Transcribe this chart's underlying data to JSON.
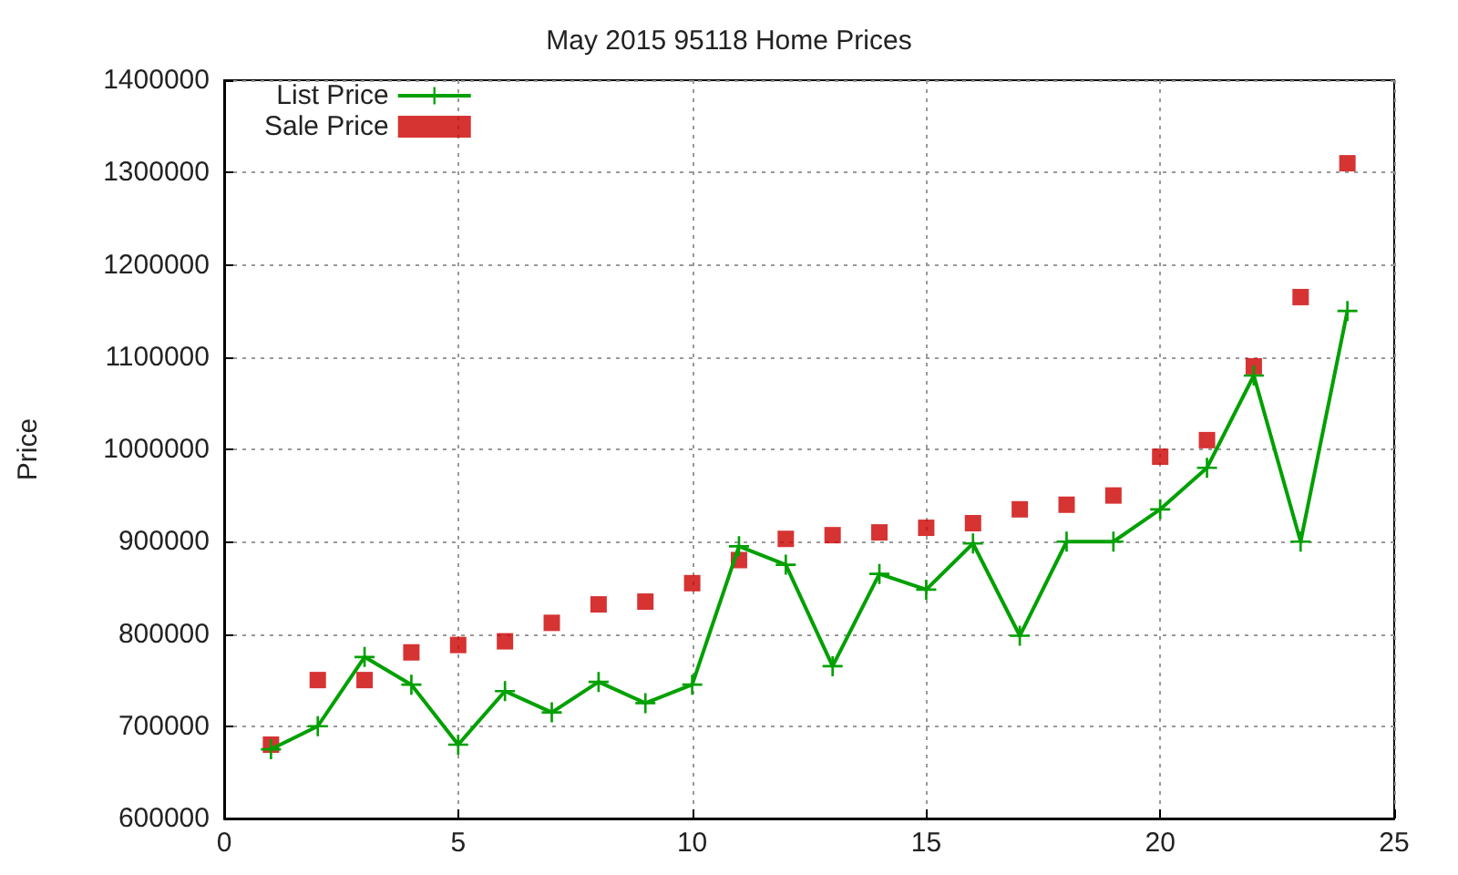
{
  "chart_data": {
    "type": "line",
    "title": "May 2015 95118 Home Prices",
    "ylabel": "Price",
    "x": [
      1,
      2,
      3,
      4,
      5,
      6,
      7,
      8,
      9,
      10,
      11,
      12,
      13,
      14,
      15,
      16,
      17,
      18,
      19,
      20,
      21,
      22,
      23,
      24
    ],
    "series": [
      {
        "name": "List Price",
        "marker": "cross",
        "color": "#00a000",
        "values": [
          675000,
          700000,
          775000,
          745000,
          680000,
          738000,
          715000,
          748000,
          725000,
          745000,
          895000,
          875000,
          765000,
          865000,
          848000,
          898000,
          798000,
          900000,
          900000,
          935000,
          980000,
          1080000,
          900000,
          1150000
        ]
      },
      {
        "name": "Sale Price",
        "type": "scatter",
        "marker": "square",
        "color": "#cc0000",
        "values": [
          680000,
          750000,
          750000,
          780000,
          788000,
          792000,
          812000,
          832000,
          835000,
          855000,
          880000,
          903000,
          907000,
          910000,
          915000,
          920000,
          935000,
          940000,
          950000,
          992000,
          1010000,
          1090000,
          1165000,
          1310000
        ]
      }
    ],
    "xlim": [
      0,
      25
    ],
    "xticks": [
      0,
      5,
      10,
      15,
      20,
      25
    ],
    "ylim": [
      600000,
      1400000
    ],
    "yticks": [
      600000,
      700000,
      800000,
      900000,
      1000000,
      1100000,
      1200000,
      1300000,
      1400000
    ],
    "grid": true,
    "legend": "top left"
  }
}
